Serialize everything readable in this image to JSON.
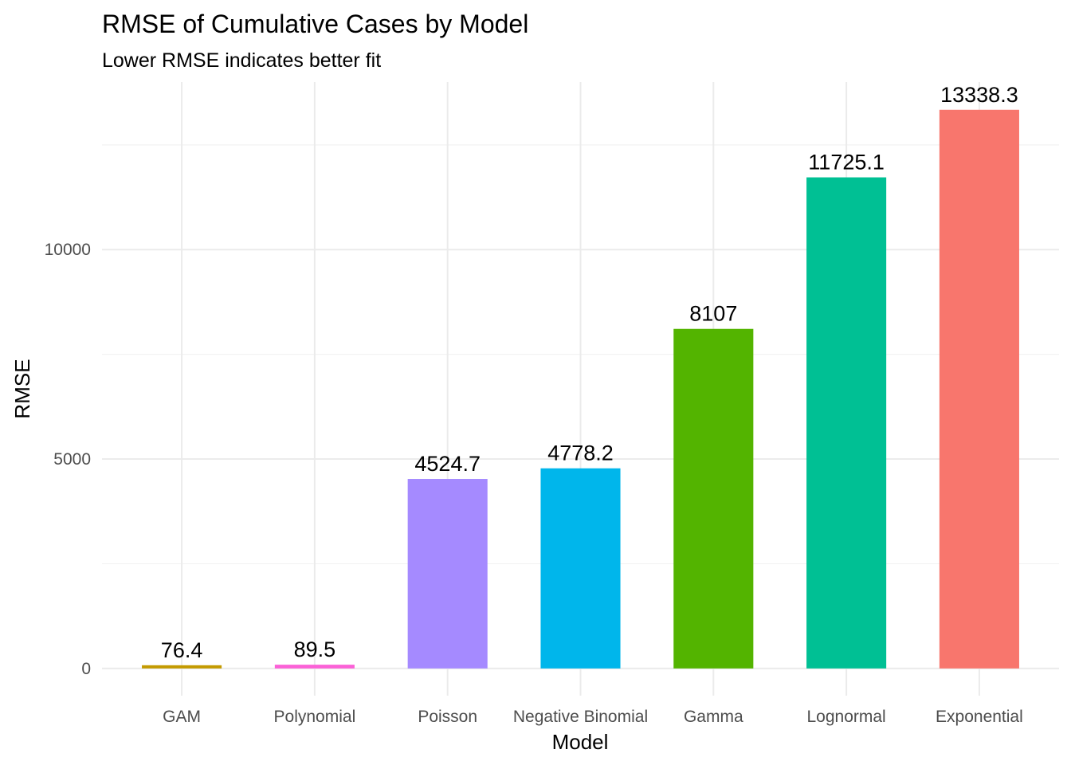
{
  "chart_data": {
    "type": "bar",
    "title": "RMSE of Cumulative Cases by Model",
    "subtitle": "Lower RMSE indicates better fit",
    "xlabel": "Model",
    "ylabel": "RMSE",
    "categories": [
      "GAM",
      "Polynomial",
      "Poisson",
      "Negative Binomial",
      "Gamma",
      "Lognormal",
      "Exponential"
    ],
    "values": [
      76.4,
      89.5,
      4524.7,
      4778.2,
      8107,
      11725.1,
      13338.3
    ],
    "value_labels": [
      "76.4",
      "89.5",
      "4524.7",
      "4778.2",
      "8107",
      "11725.1",
      "13338.3"
    ],
    "colors": [
      "#C49A00",
      "#FB61D7",
      "#A58AFF",
      "#00B6EB",
      "#53B400",
      "#00C094",
      "#F8766D"
    ],
    "ylim": [
      -650,
      14000
    ],
    "yticks": [
      0,
      5000,
      10000
    ],
    "ytick_labels": [
      "0",
      "5000",
      "10000"
    ],
    "grid": true,
    "legend": "none"
  }
}
